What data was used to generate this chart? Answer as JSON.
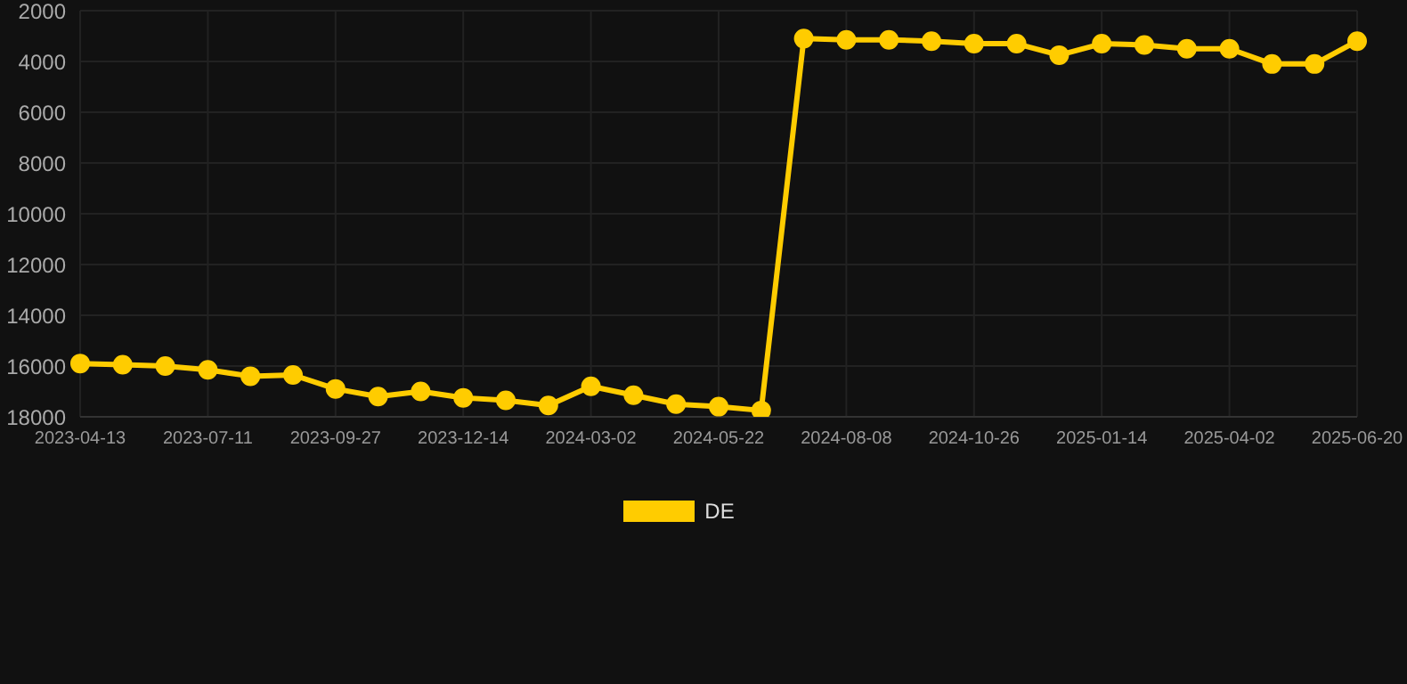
{
  "chart_data": {
    "type": "line",
    "categories": [
      "2023-04-13",
      null,
      null,
      "2023-07-11",
      null,
      null,
      "2023-09-27",
      null,
      null,
      "2023-12-14",
      null,
      null,
      "2024-03-02",
      null,
      null,
      "2024-05-22",
      null,
      null,
      "2024-08-08",
      null,
      null,
      "2024-10-26",
      null,
      null,
      "2025-01-14",
      null,
      null,
      "2025-04-02",
      null,
      null,
      "2025-06-20"
    ],
    "series": [
      {
        "name": "DE",
        "color": "#ffcc00",
        "values": [
          15900,
          15950,
          16000,
          16150,
          16400,
          16350,
          16900,
          17200,
          17000,
          17250,
          17350,
          17550,
          16800,
          17150,
          17500,
          17600,
          17750,
          3100,
          3150,
          3150,
          3200,
          3300,
          3300,
          3750,
          3300,
          3350,
          3500,
          3500,
          4100,
          4100,
          3200
        ]
      }
    ],
    "ylim": [
      18000,
      2000
    ],
    "yticks": [
      2000,
      4000,
      6000,
      8000,
      10000,
      12000,
      14000,
      16000,
      18000
    ],
    "grid": true,
    "legend": "bottom",
    "marker": "circle",
    "line_style": "solid"
  }
}
